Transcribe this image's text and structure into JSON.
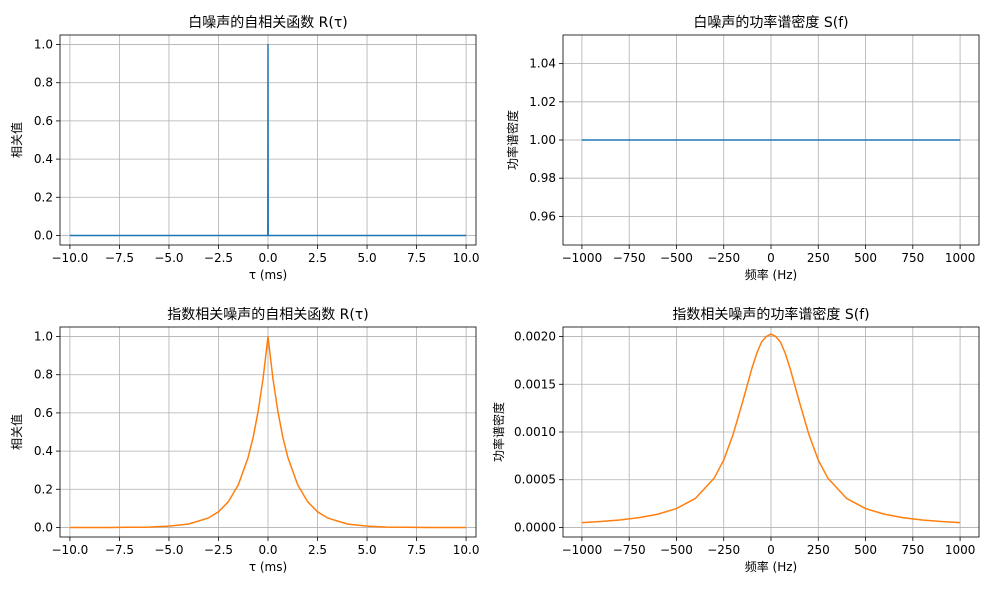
{
  "figure": {
    "background": "#ffffff",
    "grid_color": "#b0b0b0"
  },
  "chart_data": [
    {
      "type": "line",
      "title": "白噪声的自相关函数 R(τ)",
      "xlabel": "τ (ms)",
      "ylabel": "相关值",
      "xlim": [
        -10.5,
        10.5
      ],
      "ylim": [
        -0.05,
        1.05
      ],
      "xticks": [
        -10,
        -7.5,
        -5,
        -2.5,
        0,
        2.5,
        5,
        7.5,
        10
      ],
      "xtick_labels": [
        "−10.0",
        "−7.5",
        "−5.0",
        "−2.5",
        "0.0",
        "2.5",
        "5.0",
        "7.5",
        "10.0"
      ],
      "yticks": [
        0,
        0.2,
        0.4,
        0.6,
        0.8,
        1.0
      ],
      "ytick_labels": [
        "0.0",
        "0.2",
        "0.4",
        "0.6",
        "0.8",
        "1.0"
      ],
      "grid": true,
      "series": [
        {
          "color": "#1f77b4",
          "x": [
            -10,
            -0.01,
            0,
            0.01,
            10
          ],
          "y": [
            0,
            0,
            1,
            0,
            0
          ]
        }
      ]
    },
    {
      "type": "line",
      "title": "白噪声的功率谱密度 S(f)",
      "xlabel": "频率 (Hz)",
      "ylabel": "功率谱密度",
      "xlim": [
        -1100,
        1100
      ],
      "ylim": [
        0.945,
        1.055
      ],
      "xticks": [
        -1000,
        -750,
        -500,
        -250,
        0,
        250,
        500,
        750,
        1000
      ],
      "xtick_labels": [
        "−1000",
        "−750",
        "−500",
        "−250",
        "0",
        "250",
        "500",
        "750",
        "1000"
      ],
      "yticks": [
        0.96,
        0.98,
        1.0,
        1.02,
        1.04
      ],
      "ytick_labels": [
        "0.96",
        "0.98",
        "1.00",
        "1.02",
        "1.04"
      ],
      "grid": true,
      "series": [
        {
          "color": "#1f77b4",
          "x": [
            -1000,
            1000
          ],
          "y": [
            1.0,
            1.0
          ]
        }
      ]
    },
    {
      "type": "line",
      "title": "指数相关噪声的自相关函数 R(τ)",
      "xlabel": "τ (ms)",
      "ylabel": "相关值",
      "xlim": [
        -10.5,
        10.5
      ],
      "ylim": [
        -0.05,
        1.05
      ],
      "xticks": [
        -10,
        -7.5,
        -5,
        -2.5,
        0,
        2.5,
        5,
        7.5,
        10
      ],
      "xtick_labels": [
        "−10.0",
        "−7.5",
        "−5.0",
        "−2.5",
        "0.0",
        "2.5",
        "5.0",
        "7.5",
        "10.0"
      ],
      "yticks": [
        0,
        0.2,
        0.4,
        0.6,
        0.8,
        1.0
      ],
      "ytick_labels": [
        "0.0",
        "0.2",
        "0.4",
        "0.6",
        "0.8",
        "1.0"
      ],
      "grid": true,
      "series": [
        {
          "color": "#ff7f0e",
          "x": [
            -10,
            -9,
            -8,
            -7,
            -6,
            -5,
            -4,
            -3,
            -2.5,
            -2,
            -1.5,
            -1,
            -0.75,
            -0.5,
            -0.25,
            0,
            0.25,
            0.5,
            0.75,
            1,
            1.5,
            2,
            2.5,
            3,
            4,
            5,
            6,
            7,
            8,
            9,
            10
          ],
          "y": [
            0.0,
            0.0,
            0.0,
            0.001,
            0.002,
            0.007,
            0.018,
            0.05,
            0.082,
            0.135,
            0.223,
            0.368,
            0.472,
            0.607,
            0.779,
            1.0,
            0.779,
            0.607,
            0.472,
            0.368,
            0.223,
            0.135,
            0.082,
            0.05,
            0.018,
            0.007,
            0.002,
            0.001,
            0.0,
            0.0,
            0.0
          ]
        }
      ]
    },
    {
      "type": "line",
      "title": "指数相关噪声的功率谱密度 S(f)",
      "xlabel": "频率 (Hz)",
      "ylabel": "功率谱密度",
      "xlim": [
        -1100,
        1100
      ],
      "ylim": [
        -0.0001,
        0.0021
      ],
      "xticks": [
        -1000,
        -750,
        -500,
        -250,
        0,
        250,
        500,
        750,
        1000
      ],
      "xtick_labels": [
        "−1000",
        "−750",
        "−500",
        "−250",
        "0",
        "250",
        "500",
        "750",
        "1000"
      ],
      "yticks": [
        0,
        0.0005,
        0.001,
        0.0015,
        0.002
      ],
      "ytick_labels": [
        "0.0000",
        "0.0005",
        "0.0010",
        "0.0015",
        "0.0020"
      ],
      "grid": true,
      "series": [
        {
          "color": "#ff7f0e",
          "x": [
            -1000,
            -900,
            -800,
            -700,
            -600,
            -500,
            -400,
            -300,
            -250,
            -200,
            -150,
            -100,
            -75,
            -50,
            -25,
            0,
            25,
            50,
            75,
            100,
            150,
            200,
            250,
            300,
            400,
            500,
            600,
            700,
            800,
            900,
            1000
          ],
          "y": [
            5.02e-05,
            6.19e-05,
            7.82e-05,
            0.000102,
            0.0001385,
            0.0001978,
            0.0003036,
            0.0005185,
            0.000706,
            0.0009768,
            0.0013169,
            0.0016733,
            0.0018261,
            0.001943,
            0.002,
            0.0020264,
            0.002,
            0.001943,
            0.0018261,
            0.0016733,
            0.0013169,
            0.0009768,
            0.000706,
            0.0005185,
            0.0003036,
            0.0001978,
            0.0001385,
            0.000102,
            7.82e-05,
            6.19e-05,
            5.02e-05
          ]
        }
      ]
    }
  ]
}
